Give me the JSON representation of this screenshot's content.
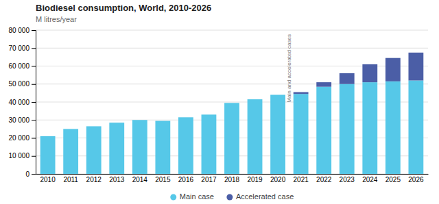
{
  "chart_data": {
    "type": "bar",
    "stacked": true,
    "title": "Biodiesel consumption, World, 2010-2026",
    "ylabel": "M litres/year",
    "annotation": "Main and accelerated cases",
    "categories": [
      "2010",
      "2011",
      "2012",
      "2013",
      "2014",
      "2015",
      "2016",
      "2017",
      "2018",
      "2019",
      "2020",
      "2021",
      "2022",
      "2023",
      "2024",
      "2025",
      "2026"
    ],
    "series": [
      {
        "name": "Main case",
        "color": "#56C8E8",
        "values": [
          21000,
          25000,
          26500,
          28500,
          30000,
          29500,
          31500,
          33000,
          39500,
          41500,
          44000,
          44500,
          48500,
          50000,
          51000,
          51500,
          52000
        ]
      },
      {
        "name": "Accelerated case",
        "color": "#4B5EA6",
        "values": [
          0,
          0,
          0,
          0,
          0,
          0,
          0,
          0,
          0,
          0,
          0,
          1000,
          2500,
          6000,
          10000,
          13000,
          15500
        ]
      }
    ],
    "ylim": [
      0,
      80000
    ],
    "yticks": [
      0,
      {
        "value": 10000,
        "label": "10 000"
      },
      {
        "value": 20000,
        "label": "20 000"
      },
      {
        "value": 30000,
        "label": "30 000"
      },
      {
        "value": 40000,
        "label": "40 000"
      },
      {
        "value": 50000,
        "label": "50 000"
      },
      {
        "value": 60000,
        "label": "60 000"
      },
      {
        "value": 70000,
        "label": "70 000"
      },
      {
        "value": 80000,
        "label": "80 000"
      }
    ],
    "grid": true,
    "legend": "bottom"
  }
}
